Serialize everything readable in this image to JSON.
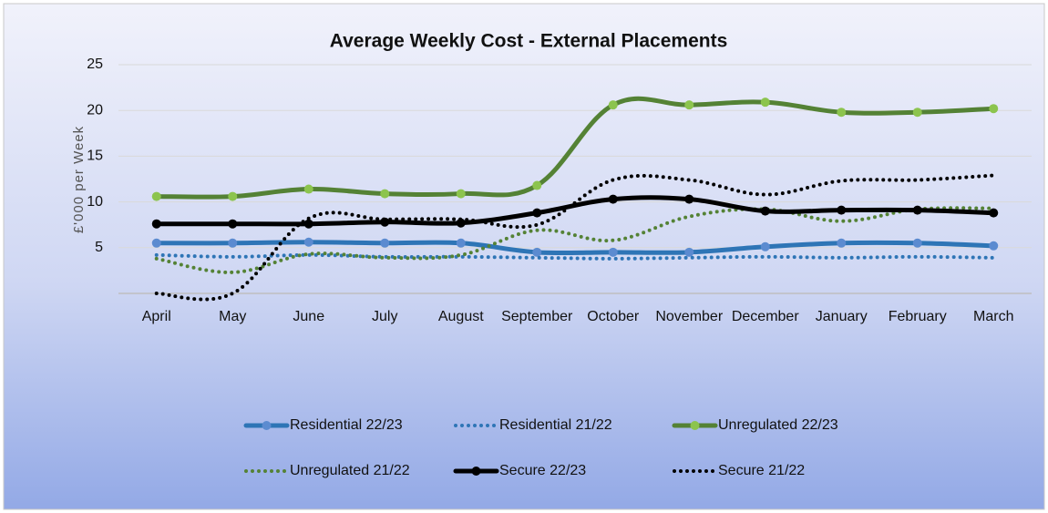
{
  "chart_data": {
    "type": "line",
    "title": "Average Weekly Cost - External Placements",
    "y_label": "£'000 per Week",
    "categories": [
      "April",
      "May",
      "June",
      "July",
      "August",
      "September",
      "October",
      "November",
      "December",
      "January",
      "February",
      "March"
    ],
    "ylim": [
      0,
      25
    ],
    "yticks": [
      5,
      10,
      15,
      20,
      25
    ],
    "grid": true,
    "legend": "bottom",
    "series": [
      {
        "name": "Residential 22/23",
        "color": "#2e75b6",
        "marker_color": "#5b8bd0",
        "line_style": "solid",
        "markers": true,
        "values": [
          5.5,
          5.5,
          5.6,
          5.5,
          5.5,
          4.5,
          4.5,
          4.5,
          5.1,
          5.5,
          5.5,
          5.2
        ]
      },
      {
        "name": "Residential 21/22",
        "color": "#2e75b6",
        "line_style": "dotted",
        "markers": false,
        "values": [
          4.2,
          4.0,
          4.2,
          4.0,
          4.0,
          3.9,
          3.8,
          3.9,
          4.0,
          3.9,
          4.0,
          3.9
        ]
      },
      {
        "name": "Unregulated 22/23",
        "color": "#548235",
        "marker_color": "#8cc44e",
        "line_style": "solid",
        "markers": true,
        "values": [
          10.6,
          10.6,
          11.4,
          10.9,
          10.9,
          11.8,
          20.6,
          20.6,
          20.9,
          19.8,
          19.8,
          20.2
        ]
      },
      {
        "name": "Unregulated 21/22",
        "color": "#548235",
        "line_style": "dotted",
        "markers": false,
        "values": [
          3.8,
          2.3,
          4.3,
          3.9,
          4.2,
          6.9,
          5.8,
          8.4,
          9.2,
          7.9,
          9.2,
          9.3
        ]
      },
      {
        "name": "Secure 22/23",
        "color": "#000000",
        "marker_color": "#000000",
        "line_style": "solid",
        "markers": true,
        "values": [
          7.6,
          7.6,
          7.6,
          7.8,
          7.7,
          8.8,
          10.3,
          10.3,
          9.0,
          9.1,
          9.1,
          8.8
        ]
      },
      {
        "name": "Secure 21/22",
        "color": "#000000",
        "line_style": "dotted",
        "markers": false,
        "values": [
          0,
          0,
          8.2,
          8.1,
          8.1,
          7.5,
          12.4,
          12.4,
          10.8,
          12.3,
          12.4,
          12.9
        ]
      }
    ]
  }
}
